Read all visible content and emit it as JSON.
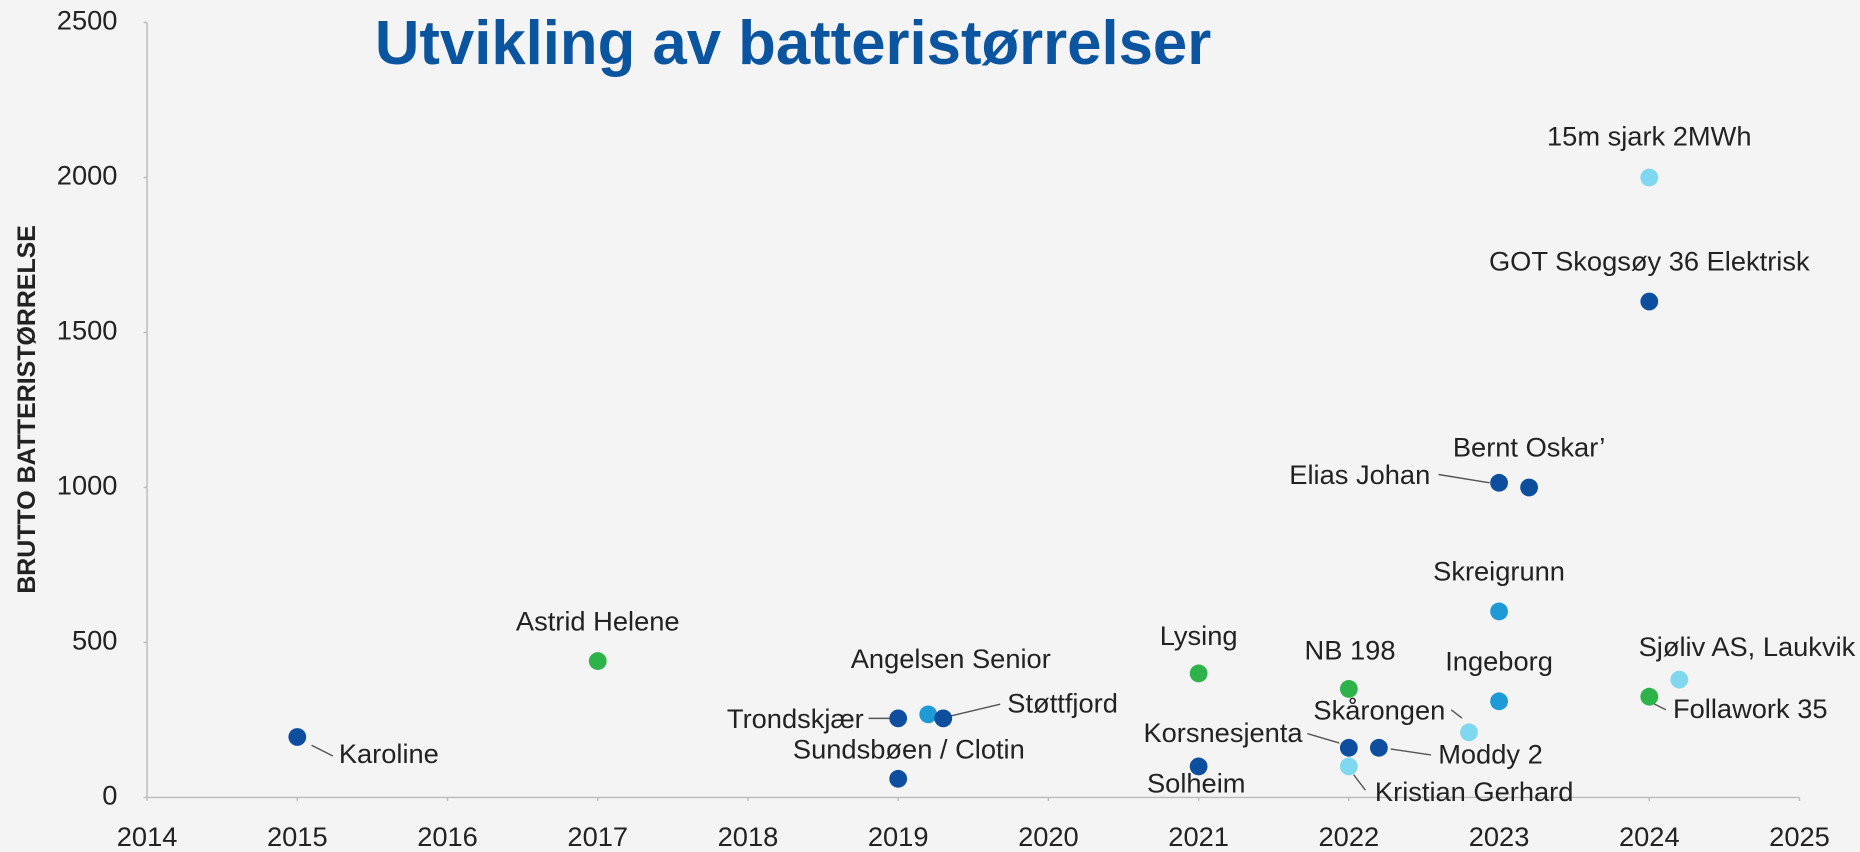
{
  "chart_data": {
    "type": "scatter",
    "title": "Utvikling av batteristørrelser",
    "y_label": "BRUTTO BATTERISTØRRELSE",
    "labels": [
      "Karoline",
      "Astrid Helene",
      "Trondskjær",
      "Angelsen Senior",
      "Støttfjord",
      "Sundsbøen / Clotin",
      "Lysing",
      "Solheim",
      "NB 198",
      "Korsnesjenta",
      "Moddy 2",
      "Kristian Gerhard",
      "Skårongen",
      "Ingeborg",
      "Skreigrunn",
      "Elias Johan",
      "Bernt Oskar’",
      "GOT Skogsøy 36 Elektrisk",
      "15m sjark 2MWh",
      "Sjøliv AS, Laukvik",
      "Follawork 35"
    ],
    "x": [
      2015,
      2017,
      2019,
      2019.2,
      2019.3,
      2019,
      2021,
      2021,
      2022,
      2022,
      2022.2,
      2022,
      2022.8,
      2023,
      2023,
      2023,
      2023.2,
      2024,
      2024,
      2024.2,
      2024
    ],
    "y": [
      195,
      440,
      255,
      268,
      255,
      60,
      400,
      100,
      350,
      160,
      160,
      100,
      210,
      310,
      600,
      1015,
      1000,
      1600,
      2000,
      380,
      325
    ],
    "colors": [
      "#0d4f9e",
      "#2db34a",
      "#0d4f9e",
      "#1e9bd7",
      "#0d4f9e",
      "#0d4f9e",
      "#2db34a",
      "#0d4f9e",
      "#2db34a",
      "#0d4f9e",
      "#0d4f9e",
      "#7fd8ef",
      "#7fd8ef",
      "#1e9bd7",
      "#1e9bd7",
      "#0d4f9e",
      "#0d4f9e",
      "#0d4f9e",
      "#7fd8ef",
      "#7fd8ef",
      "#2db34a"
    ],
    "xlim": [
      2014,
      2025
    ],
    "xticks": [
      2014,
      2015,
      2016,
      2017,
      2018,
      2019,
      2020,
      2021,
      2022,
      2023,
      2024,
      2025
    ],
    "ylim": [
      0,
      2500
    ],
    "yticks": [
      0,
      500,
      1000,
      1500,
      2000,
      2500
    ],
    "grid": false
  }
}
